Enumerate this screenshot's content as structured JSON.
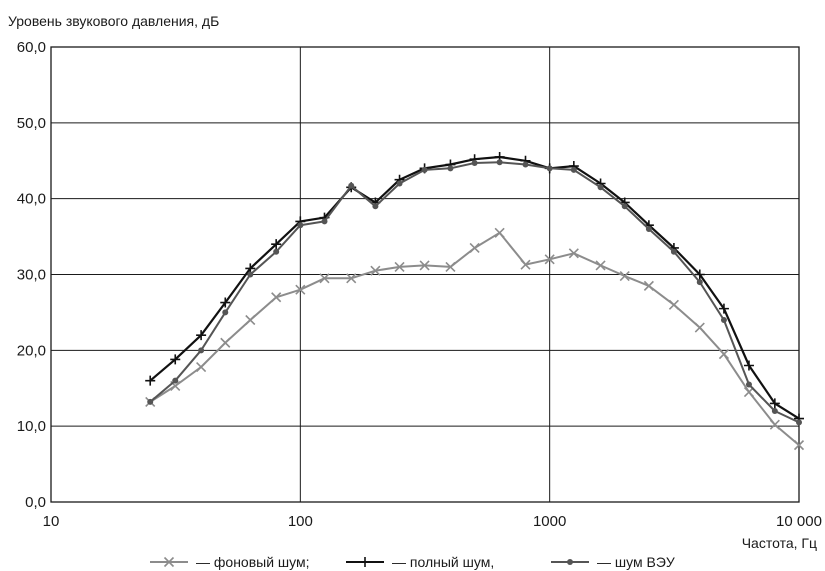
{
  "chart_data": {
    "type": "line",
    "ylabel": "Уровень звукового давления, дБ",
    "xlabel": "Частота, Гц",
    "x_scale": "log",
    "xlim": [
      10,
      10000
    ],
    "ylim": [
      0,
      60
    ],
    "x_ticks": [
      {
        "value": 10,
        "label": "10"
      },
      {
        "value": 100,
        "label": "100"
      },
      {
        "value": 1000,
        "label": "1000"
      },
      {
        "value": 10000,
        "label": "10 000"
      }
    ],
    "y_ticks": [
      {
        "value": 0,
        "label": "0,0"
      },
      {
        "value": 10,
        "label": "10,0"
      },
      {
        "value": 20,
        "label": "20,0"
      },
      {
        "value": 30,
        "label": "30,0"
      },
      {
        "value": 40,
        "label": "40,0"
      },
      {
        "value": 50,
        "label": "50,0"
      },
      {
        "value": 60,
        "label": "60,0"
      }
    ],
    "grid": true,
    "legend_position": "bottom",
    "x": [
      25,
      31.5,
      40,
      50,
      63,
      80,
      100,
      125,
      160,
      200,
      250,
      315,
      400,
      500,
      630,
      800,
      1000,
      1250,
      1600,
      2000,
      2500,
      3150,
      4000,
      5000,
      6300,
      8000,
      10000
    ],
    "series": [
      {
        "name": "— фоновый шум;",
        "color": "#8c8c8c",
        "marker": "x",
        "values": [
          13.2,
          15.3,
          17.8,
          21.0,
          24.0,
          27.0,
          28.0,
          29.5,
          29.5,
          30.5,
          31.0,
          31.2,
          31.0,
          33.5,
          35.5,
          31.3,
          32.0,
          32.8,
          31.2,
          29.8,
          28.5,
          26.0,
          23.0,
          19.5,
          14.5,
          10.2,
          7.5
        ]
      },
      {
        "name": "— полный шум,",
        "color": "#111111",
        "marker": "+",
        "values": [
          16.0,
          18.8,
          22.0,
          26.3,
          30.8,
          34.0,
          37.0,
          37.5,
          41.5,
          39.5,
          42.5,
          44.0,
          44.5,
          45.2,
          45.5,
          45.0,
          44.0,
          44.3,
          42.0,
          39.5,
          36.5,
          33.5,
          30.0,
          25.5,
          18.0,
          13.0,
          11.0
        ]
      },
      {
        "name": "— шум ВЭУ",
        "color": "#555555",
        "marker": "o",
        "values": [
          13.2,
          16.0,
          20.0,
          25.0,
          30.0,
          33.0,
          36.5,
          37.0,
          41.7,
          39.0,
          42.0,
          43.8,
          44.0,
          44.7,
          44.8,
          44.5,
          44.0,
          43.8,
          41.5,
          39.0,
          36.0,
          33.0,
          29.0,
          24.0,
          15.5,
          12.0,
          10.5
        ]
      }
    ]
  }
}
